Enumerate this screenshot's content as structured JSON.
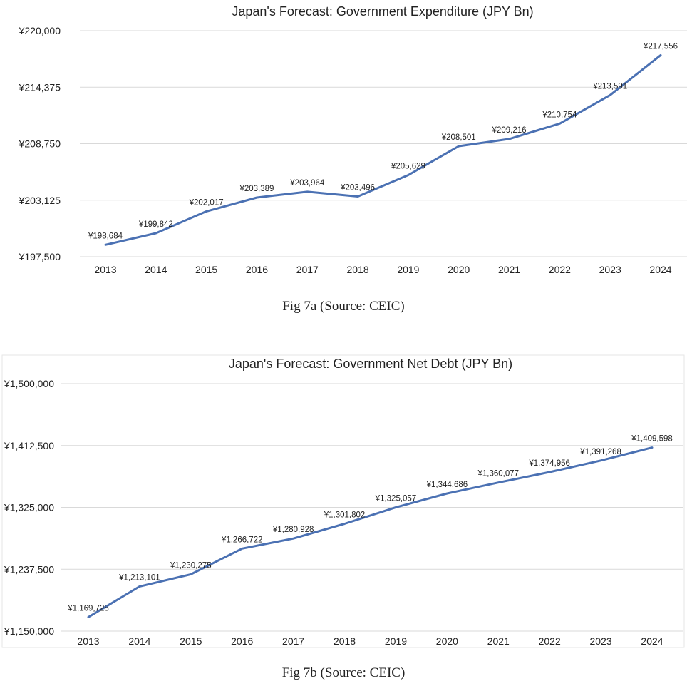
{
  "chart_data": [
    {
      "type": "line",
      "title": "Japan's Forecast: Government Expenditure (JPY Bn)",
      "categories": [
        "2013",
        "2014",
        "2015",
        "2016",
        "2017",
        "2018",
        "2019",
        "2020",
        "2021",
        "2022",
        "2023",
        "2024"
      ],
      "values": [
        198684,
        199842,
        202017,
        203389,
        203964,
        203496,
        205629,
        208501,
        209216,
        210754,
        213591,
        217556
      ],
      "data_labels": [
        "¥198,684",
        "¥199,842",
        "¥202,017",
        "¥203,389",
        "¥203,964",
        "¥203,496",
        "¥205,629",
        "¥208,501",
        "¥209,216",
        "¥210,754",
        "¥213,591",
        "¥217,556"
      ],
      "ylim": [
        197500,
        220000
      ],
      "yticks": [
        197500,
        203125,
        208750,
        214375,
        220000
      ],
      "ytick_labels": [
        "¥197,500",
        "¥203,125",
        "¥208,750",
        "¥214,375",
        "¥220,000"
      ],
      "grid": true,
      "color": "#4b71b3",
      "caption": "Fig 7a (Source: CEIC)"
    },
    {
      "type": "line",
      "title": "Japan's Forecast: Government Net Debt (JPY Bn)",
      "categories": [
        "2013",
        "2014",
        "2015",
        "2016",
        "2017",
        "2018",
        "2019",
        "2020",
        "2021",
        "2022",
        "2023",
        "2024"
      ],
      "values": [
        1169728,
        1213101,
        1230275,
        1266722,
        1280928,
        1301802,
        1325057,
        1344686,
        1360077,
        1374956,
        1391268,
        1409598
      ],
      "data_labels": [
        "¥1,169,728",
        "¥1,213,101",
        "¥1,230,275",
        "¥1,266,722",
        "¥1,280,928",
        "¥1,301,802",
        "¥1,325,057",
        "¥1,344,686",
        "¥1,360,077",
        "¥1,374,956",
        "¥1,391,268",
        "¥1,409,598"
      ],
      "ylim": [
        1150000,
        1500000
      ],
      "yticks": [
        1150000,
        1237500,
        1325000,
        1412500,
        1500000
      ],
      "ytick_labels": [
        "¥1,150,000",
        "¥1,237,500",
        "¥1,325,000",
        "¥1,412,500",
        "¥1,500,000"
      ],
      "grid": true,
      "color": "#4b71b3",
      "caption": "Fig 7b (Source: CEIC)"
    }
  ]
}
